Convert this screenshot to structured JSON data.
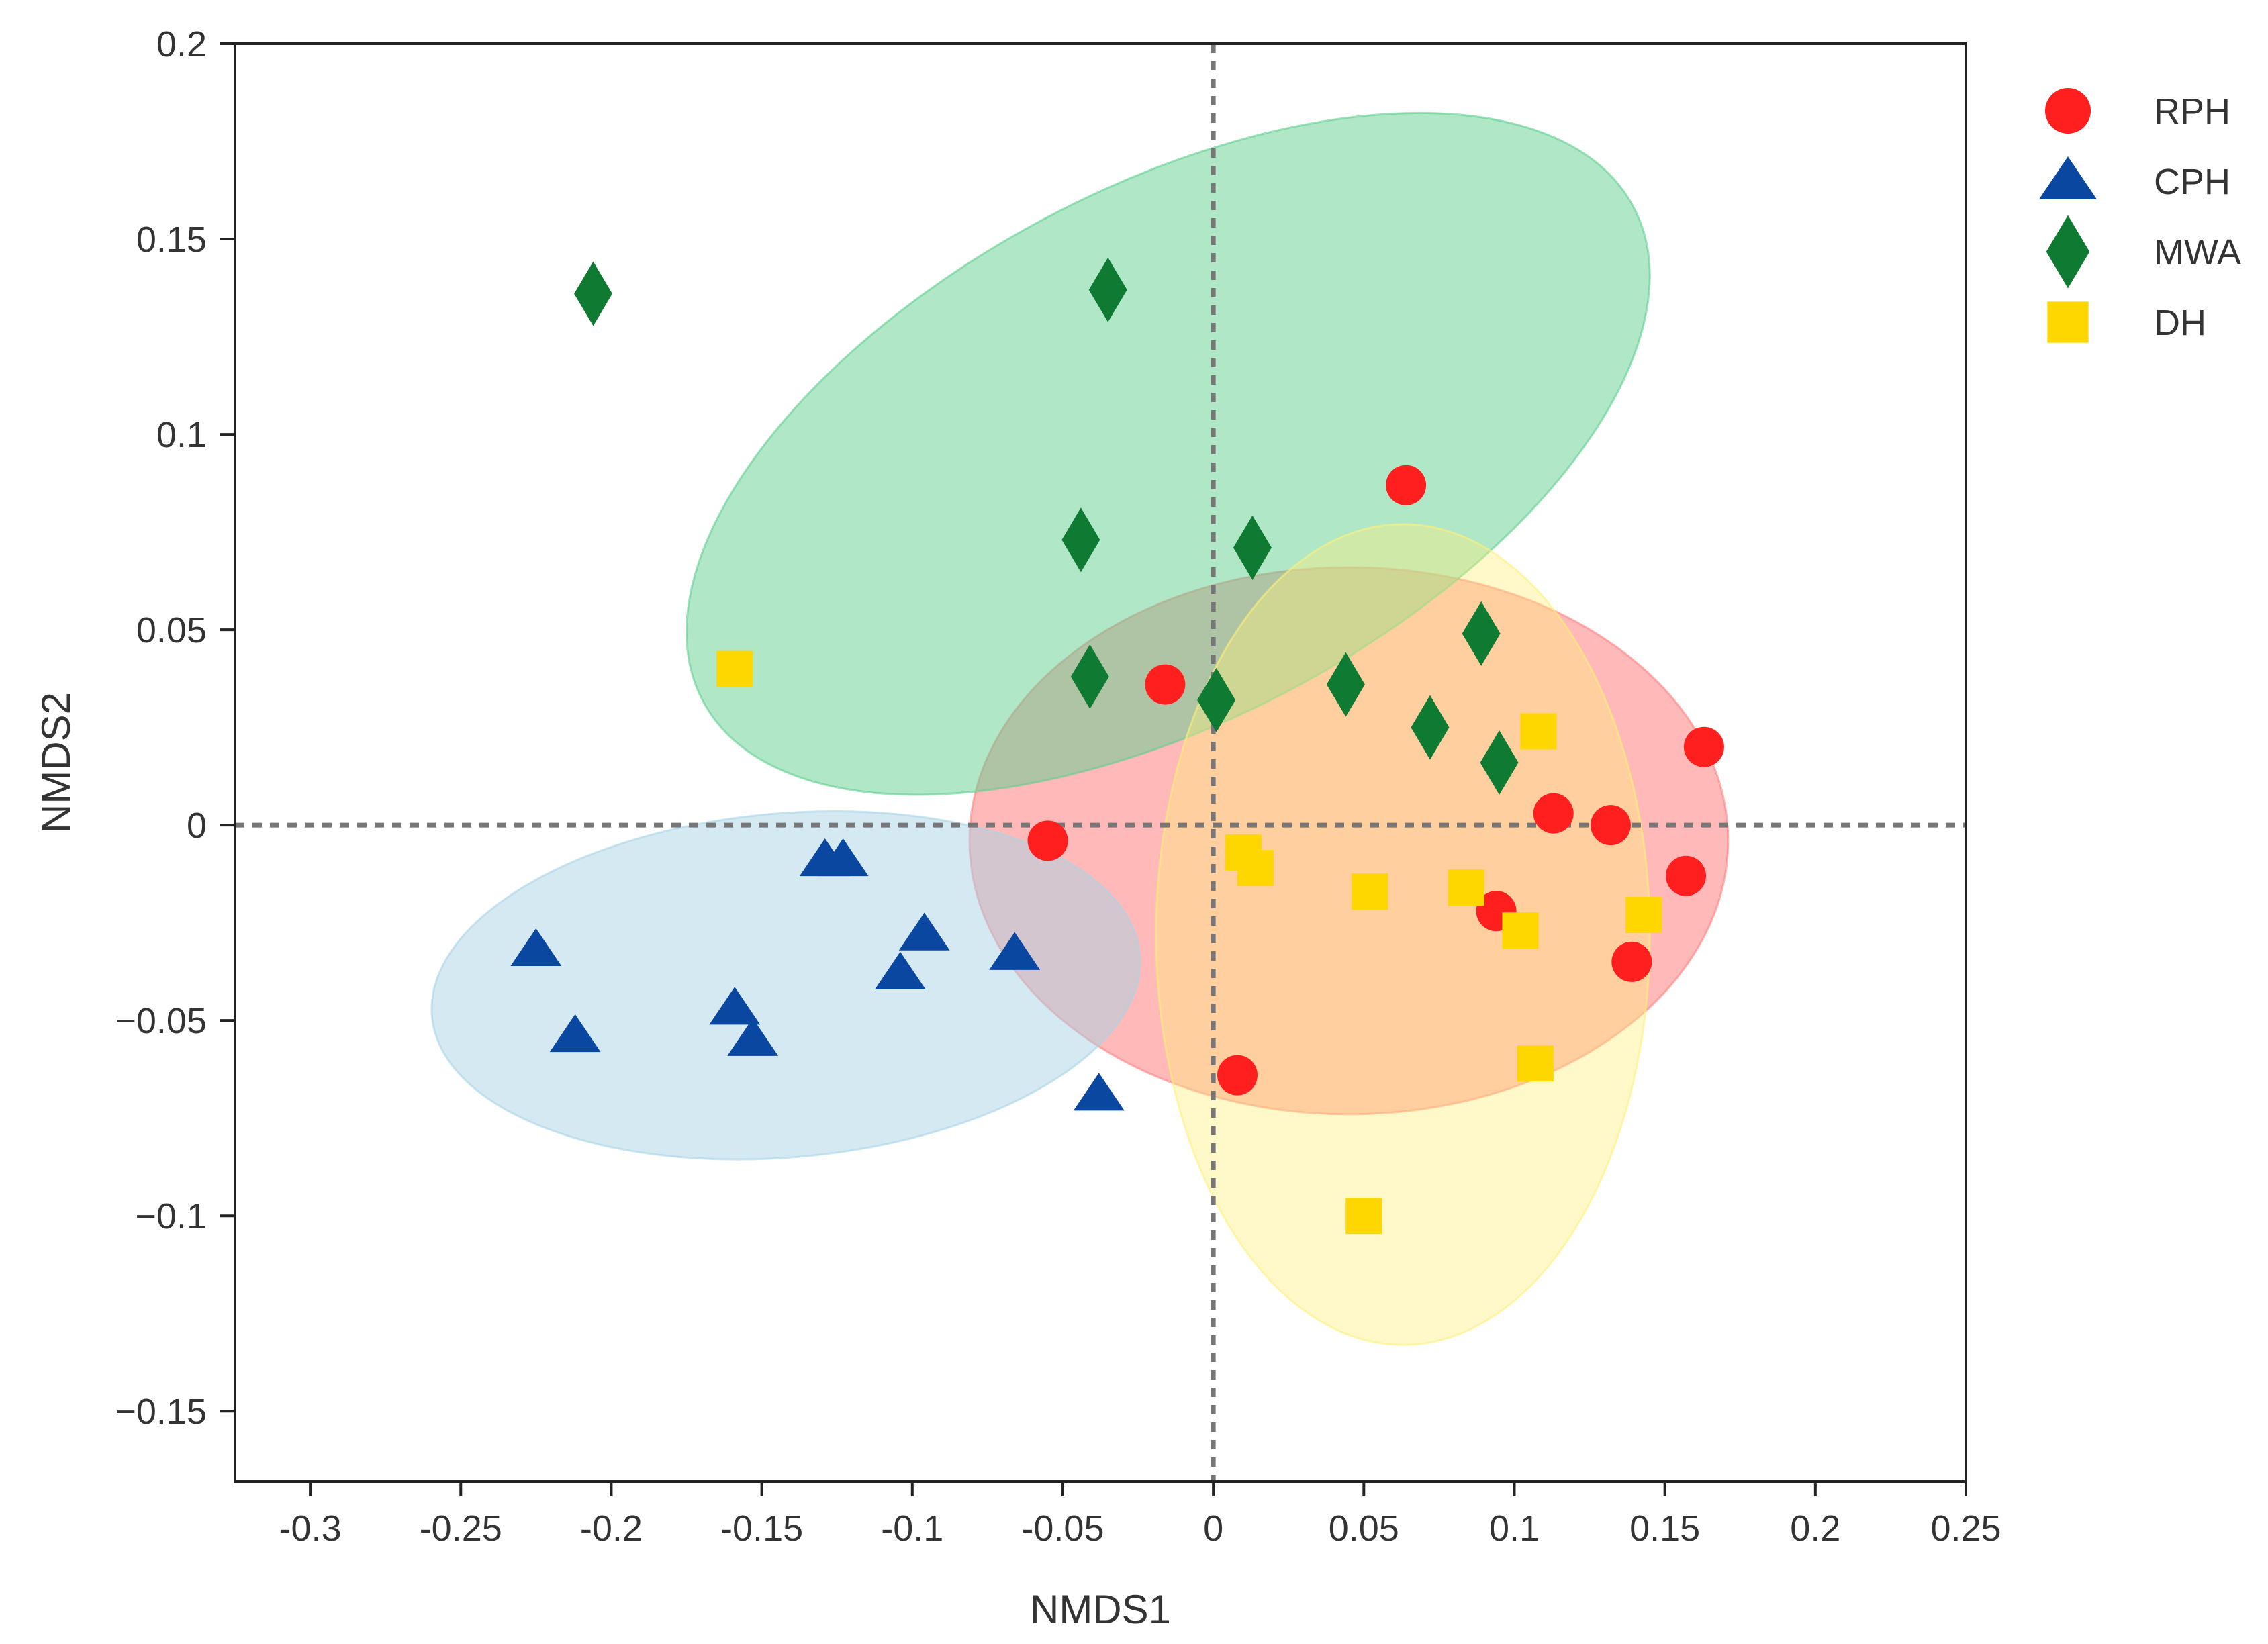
{
  "chart_data": {
    "type": "scatter",
    "title": "",
    "xlabel": "NMDS1",
    "ylabel": "NMDS2",
    "xlim": [
      -0.325,
      0.25
    ],
    "ylim": [
      -0.168,
      0.2
    ],
    "x_ticks": [
      -0.3,
      -0.25,
      -0.2,
      -0.15,
      -0.1,
      -0.05,
      0,
      0.05,
      0.1,
      0.15,
      0.2,
      0.25
    ],
    "x_tick_labels": [
      "-0.3",
      "-0.25",
      "-0.2",
      "-0.15",
      "-0.1",
      "-0.05",
      "0",
      "0.05",
      "0.1",
      "0.15",
      "0.2",
      "0.25"
    ],
    "y_ticks": [
      0.2,
      0.15,
      0.1,
      0.05,
      0,
      -0.05,
      -0.1,
      -0.15
    ],
    "y_tick_labels": [
      "0.2",
      "0.15",
      "0.1",
      "0.05",
      "0",
      "−0.05",
      "−0.1",
      "−0.15"
    ],
    "reference_lines": {
      "x": 0,
      "y": 0
    },
    "legend_position": "outside-top-right",
    "series": [
      {
        "name": "RPH",
        "marker": "circle",
        "color": "#ff1f1f",
        "ellipse": {
          "cx": 0.045,
          "cy": -0.004,
          "rx": 0.126,
          "ry": 0.07,
          "angle": 0,
          "fill": "#ff8080",
          "opacity": 0.55
        },
        "points": [
          [
            0.064,
            0.087
          ],
          [
            -0.016,
            0.036
          ],
          [
            0.163,
            0.02
          ],
          [
            0.113,
            0.003
          ],
          [
            0.132,
            0.0
          ],
          [
            -0.055,
            -0.004
          ],
          [
            0.157,
            -0.013
          ],
          [
            0.094,
            -0.022
          ],
          [
            0.139,
            -0.035
          ],
          [
            0.008,
            -0.064
          ]
        ]
      },
      {
        "name": "CPH",
        "marker": "triangle",
        "color": "#0a47a0",
        "ellipse": {
          "cx": -0.142,
          "cy": -0.041,
          "rx": 0.118,
          "ry": 0.044,
          "angle": -5,
          "fill": "#a9d3e6",
          "opacity": 0.5
        },
        "points": [
          [
            -0.129,
            -0.009
          ],
          [
            -0.123,
            -0.009
          ],
          [
            -0.225,
            -0.032
          ],
          [
            -0.096,
            -0.028
          ],
          [
            -0.066,
            -0.033
          ],
          [
            -0.104,
            -0.038
          ],
          [
            -0.159,
            -0.047
          ],
          [
            -0.212,
            -0.054
          ],
          [
            -0.153,
            -0.055
          ],
          [
            -0.038,
            -0.069
          ]
        ]
      },
      {
        "name": "MWA",
        "marker": "diamond",
        "color": "#0f7a32",
        "ellipse": {
          "cx": -0.015,
          "cy": 0.095,
          "rx": 0.175,
          "ry": 0.068,
          "angle": -28,
          "fill": "#5fcf8f",
          "opacity": 0.5
        },
        "points": [
          [
            -0.206,
            0.136
          ],
          [
            -0.035,
            0.137
          ],
          [
            -0.044,
            0.073
          ],
          [
            0.013,
            0.071
          ],
          [
            0.089,
            0.049
          ],
          [
            -0.041,
            0.038
          ],
          [
            0.044,
            0.036
          ],
          [
            0.001,
            0.032
          ],
          [
            0.072,
            0.025
          ],
          [
            0.095,
            0.016
          ]
        ]
      },
      {
        "name": "DH",
        "marker": "square",
        "color": "#ffd700",
        "ellipse": {
          "cx": 0.063,
          "cy": -0.028,
          "rx": 0.082,
          "ry": 0.105,
          "angle": 0,
          "fill": "#fff07a",
          "opacity": 0.4
        },
        "points": [
          [
            -0.159,
            0.04
          ],
          [
            0.108,
            0.024
          ],
          [
            0.01,
            -0.007
          ],
          [
            0.014,
            -0.011
          ],
          [
            0.052,
            -0.017
          ],
          [
            0.084,
            -0.016
          ],
          [
            0.102,
            -0.027
          ],
          [
            0.143,
            -0.023
          ],
          [
            0.107,
            -0.061
          ],
          [
            0.05,
            -0.1
          ]
        ]
      }
    ]
  }
}
